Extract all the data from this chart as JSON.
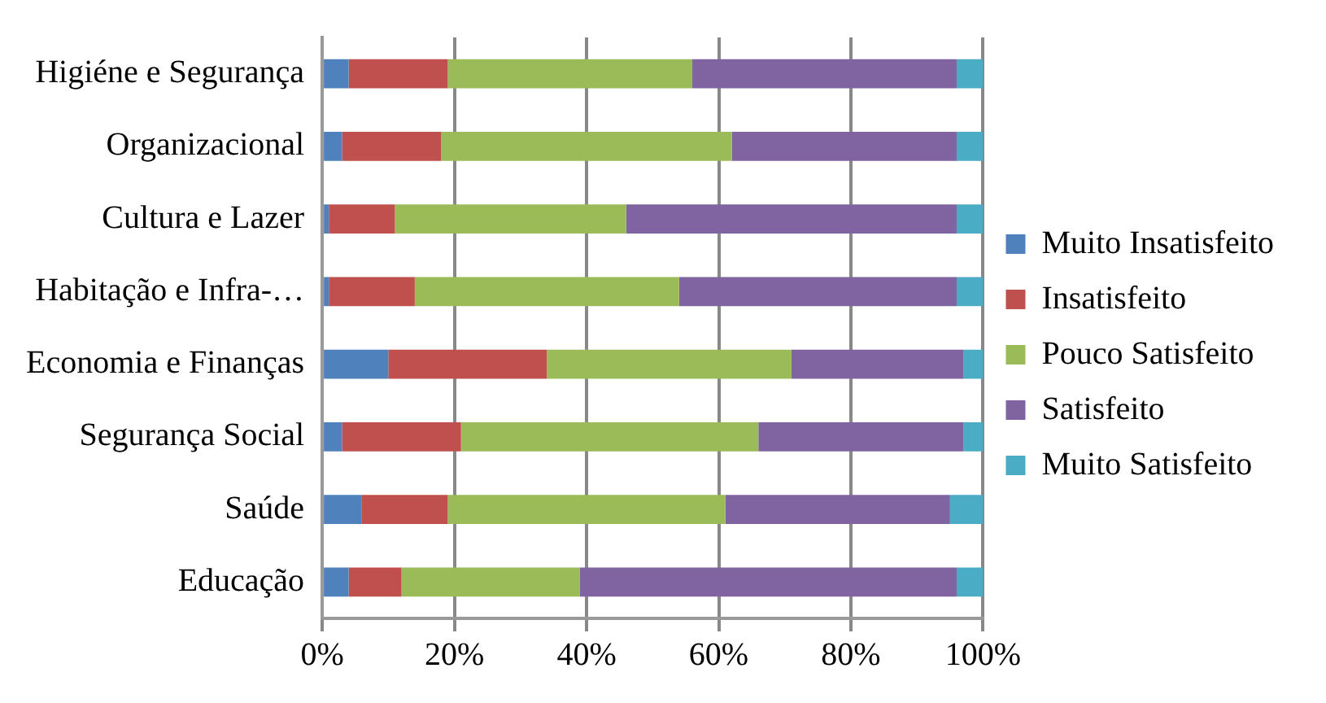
{
  "chart_data": {
    "type": "bar",
    "orientation": "horizontal",
    "stacked": true,
    "categories": [
      "Higiéne e Segurança",
      "Organizacional",
      "Cultura e Lazer",
      "Habitação e Infra-…",
      "Economia e Finanças",
      "Segurança Social",
      "Saúde",
      "Educação"
    ],
    "series": [
      {
        "name": "Muito Insatisfeito",
        "color": "#4f81bd",
        "values": [
          4,
          3,
          1,
          1,
          10,
          3,
          6,
          4
        ]
      },
      {
        "name": "Insatisfeito",
        "color": "#c0504d",
        "values": [
          15,
          15,
          10,
          13,
          24,
          18,
          13,
          8
        ]
      },
      {
        "name": "Pouco Satisfeito",
        "color": "#9bbb59",
        "values": [
          37,
          44,
          35,
          40,
          37,
          45,
          42,
          27
        ]
      },
      {
        "name": "Satisfeito",
        "color": "#8064a2",
        "values": [
          40,
          34,
          50,
          42,
          26,
          31,
          34,
          57
        ]
      },
      {
        "name": "Muito Satisfeito",
        "color": "#4bacc6",
        "values": [
          4,
          4,
          4,
          4,
          3,
          3,
          5,
          4
        ]
      }
    ],
    "xlim": [
      0,
      100
    ],
    "xticks": [
      {
        "value": 0,
        "label": "0%"
      },
      {
        "value": 20,
        "label": "20%"
      },
      {
        "value": 40,
        "label": "40%"
      },
      {
        "value": 60,
        "label": "60%"
      },
      {
        "value": 80,
        "label": "80%"
      },
      {
        "value": 100,
        "label": "100%"
      }
    ],
    "grid": "x",
    "legend": "right"
  }
}
